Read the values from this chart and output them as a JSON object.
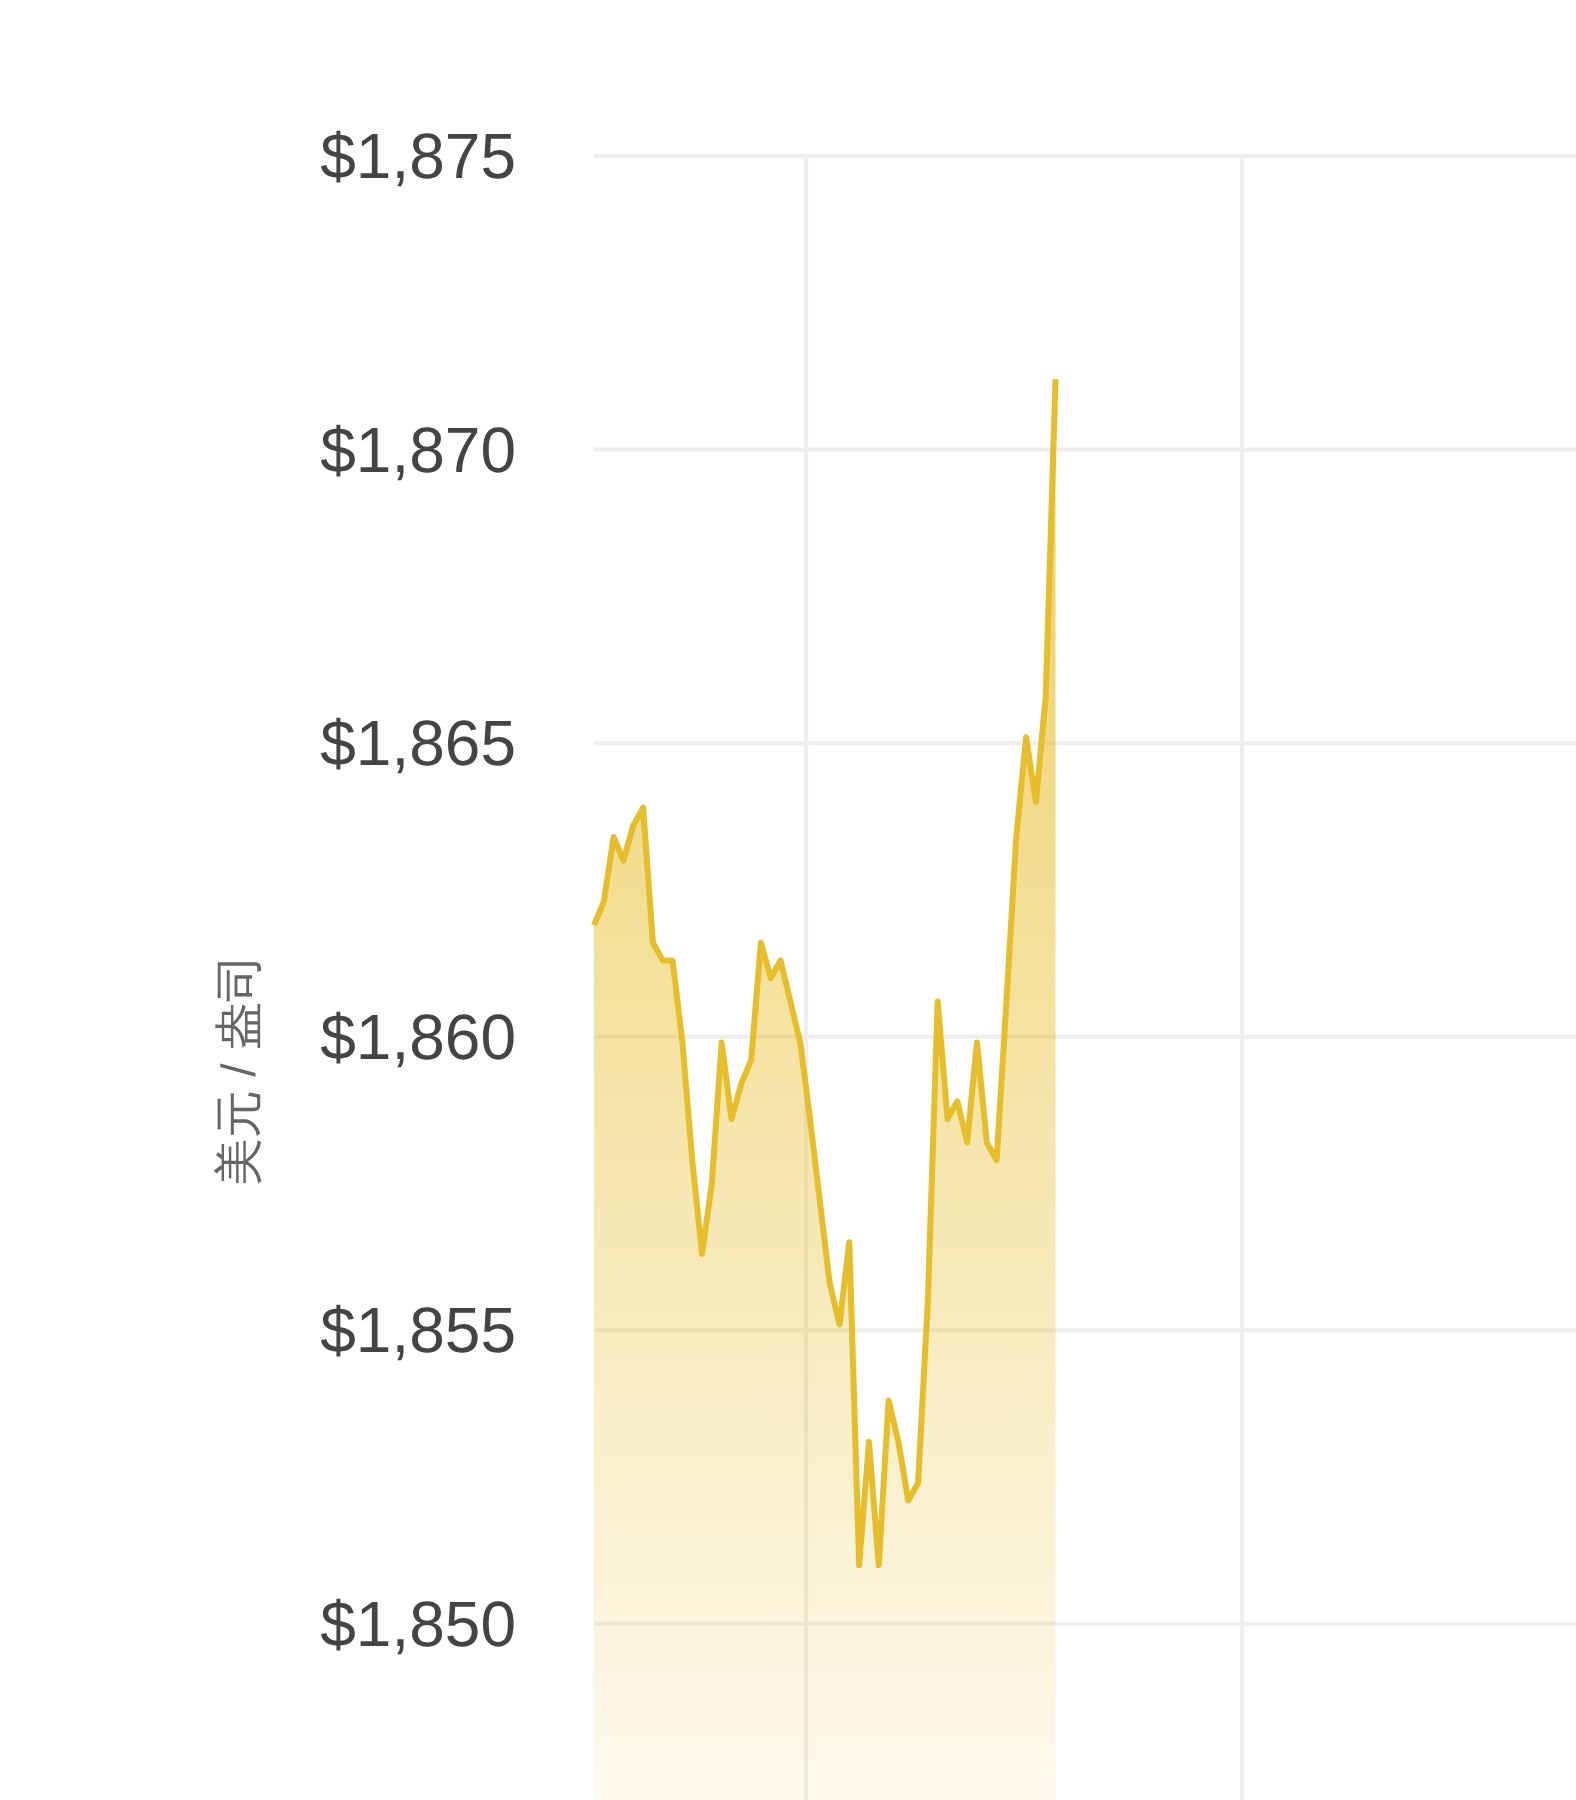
{
  "chart_data": {
    "type": "area",
    "ylabel": "美元 / 盎司",
    "color": "#e6be2c",
    "grid": true,
    "ylim": [
      1847,
      1875
    ],
    "yticks": [
      {
        "value": 1850,
        "label": "$1,850"
      },
      {
        "value": 1855,
        "label": "$1,855"
      },
      {
        "value": 1860,
        "label": "$1,860"
      },
      {
        "value": 1865,
        "label": "$1,865"
      },
      {
        "value": 1870,
        "label": "$1,870"
      },
      {
        "value": 1875,
        "label": "$1,875"
      }
    ],
    "categories": [
      null,
      null,
      null,
      null,
      null,
      null,
      null,
      null,
      null,
      null,
      null,
      null,
      null,
      null,
      null,
      null,
      null,
      null,
      null,
      null,
      null,
      null,
      null,
      null,
      null,
      null,
      null,
      null,
      null,
      null,
      null,
      null,
      null,
      null,
      null,
      null,
      null,
      null,
      null,
      null,
      null,
      null,
      null,
      null,
      null,
      null,
      null,
      null,
      null,
      null,
      null,
      null,
      null,
      null,
      null,
      null,
      null,
      null,
      null,
      null,
      null,
      null,
      null,
      null,
      null,
      null,
      null,
      null,
      null,
      null,
      null,
      null,
      null,
      null,
      null,
      null,
      null,
      null,
      null,
      null,
      null,
      null,
      null,
      null,
      null,
      null,
      null,
      null,
      null,
      null,
      null,
      null,
      null,
      null,
      null,
      null,
      null,
      null,
      null,
      null,
      null
    ],
    "values": [
      1861.9,
      1862.3,
      1863.4,
      1863.0,
      1863.6,
      1863.9,
      1861.6,
      1861.3,
      1861.3,
      1859.9,
      1857.9,
      1856.3,
      1857.5,
      1859.9,
      1858.6,
      1859.2,
      1859.6,
      1861.6,
      1861.0,
      1861.3,
      1860.6,
      1859.9,
      1858.6,
      1857.2,
      1855.8,
      1855.1,
      1856.5,
      1851.0,
      1853.1,
      1851.0,
      1853.8,
      1853.1,
      1852.1,
      1852.4,
      1855.5,
      1860.6,
      1858.6,
      1858.9,
      1858.2,
      1859.9,
      1858.2,
      1857.9,
      1860.6,
      1863.4,
      1865.1,
      1864.0,
      1865.8,
      1871.2,
      null,
      null,
      null,
      null,
      null,
      null,
      null,
      null,
      null,
      null,
      null,
      null,
      null,
      null,
      null,
      null,
      null,
      null,
      null,
      null,
      null,
      null,
      null,
      null,
      null,
      null,
      null,
      null,
      null,
      null,
      null,
      null,
      null,
      null,
      null,
      null,
      null,
      null,
      null,
      null,
      null,
      null,
      null,
      null,
      null,
      null,
      null,
      null,
      null,
      null,
      null,
      null,
      null
    ]
  }
}
